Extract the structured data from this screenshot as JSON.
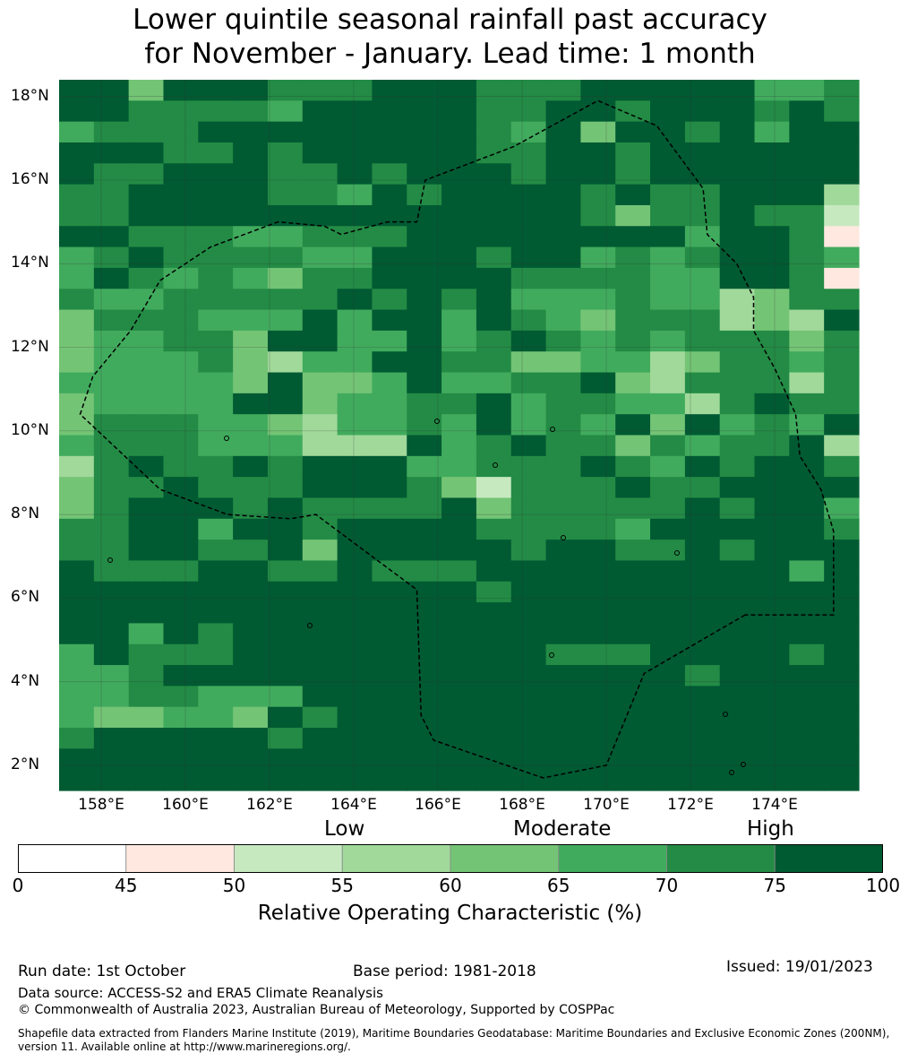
{
  "title": {
    "line1": "Lower quintile seasonal rainfall past accuracy",
    "line2": "for November - January. Lead time: 1 month"
  },
  "map": {
    "lat_labels": [
      "18°N",
      "16°N",
      "14°N",
      "12°N",
      "10°N",
      "8°N",
      "6°N",
      "4°N",
      "2°N"
    ],
    "lon_labels": [
      "158°E",
      "160°E",
      "162°E",
      "164°E",
      "166°E",
      "168°E",
      "170°E",
      "172°E",
      "174°E"
    ],
    "lon_range": [
      157,
      176
    ],
    "lat_range": [
      1.4,
      18.4
    ],
    "cell_size_deg": 0.833,
    "grid_cols": 23,
    "grid_rows": 34,
    "roc_class_grid": [
      "77477766677766677777556",
      "77666657777766776777676",
      "56667777777765747767577",
      "77766767777766776777777",
      "76677766767776776777777",
      "66777766576777767667773",
      "66777777777777764667662",
      "77666556667777777757761",
      "56766665577767756567765",
      "57656546677776666557761",
      "65566666767675556553466",
      "46665557577576546663437",
      "45566477557567656566646",
      "45556435577664455346656",
      "55555474457556674366636",
      "45555774556675665536766",
      "46665543556575657475657",
      "56665553337567664656673",
      "36766767775566676576776",
      "46676667776426667667777",
      "46777676666746666676775",
      "66775776777766665777776",
      "66776674777776776676777",
      "76667766766677777777757",
      "77777777777767777777777",
      "77777777777777777777777",
      "77576777777777777777777",
      "57666777777777666777767",
      "55677777777777777767777",
      "55665557777777777777777",
      "54455476777777777777777",
      "67777767777777777777777",
      "77777777777777777777777",
      "77777777777777777777777"
    ],
    "eez_outline": [
      [
        173.3,
        5.6
      ],
      [
        170.9,
        4.2
      ],
      [
        170,
        2
      ],
      [
        168.5,
        1.7
      ],
      [
        165.9,
        2.6
      ],
      [
        165.6,
        3.2
      ],
      [
        165.5,
        6.2
      ],
      [
        163.1,
        8.0
      ],
      [
        162.5,
        7.9
      ],
      [
        161,
        8
      ],
      [
        159.4,
        8.6
      ],
      [
        157.5,
        10.4
      ],
      [
        157.8,
        11.3
      ],
      [
        158.7,
        12.4
      ],
      [
        159.4,
        13.6
      ],
      [
        160.6,
        14.4
      ],
      [
        162.2,
        15
      ],
      [
        163.3,
        14.9
      ],
      [
        163.7,
        14.7
      ],
      [
        164.8,
        15.0
      ],
      [
        165.5,
        15.0
      ],
      [
        165.7,
        16
      ],
      [
        167.8,
        16.8
      ],
      [
        169.8,
        17.9
      ],
      [
        171.2,
        17.3
      ],
      [
        172.3,
        15.8
      ],
      [
        172.4,
        14.7
      ],
      [
        173.1,
        14.0
      ],
      [
        173.5,
        13.2
      ],
      [
        173.5,
        12.4
      ],
      [
        174,
        11.5
      ],
      [
        174.5,
        10.4
      ],
      [
        174.6,
        9.4
      ],
      [
        175.1,
        8.6
      ],
      [
        175.4,
        7.6
      ],
      [
        175.4,
        5.6
      ],
      [
        173.3,
        5.6
      ]
    ],
    "colors": {
      "class0": "#ffffff",
      "class1": "#fee8df",
      "class2": "#c7e9c0",
      "class3": "#a1d99b",
      "class4": "#74c476",
      "class5": "#41ab5d",
      "class6": "#238b45",
      "class7": "#005a32"
    }
  },
  "legend": {
    "categories": [
      "Low",
      "Moderate",
      "High"
    ],
    "ticks": [
      "0",
      "45",
      "50",
      "55",
      "60",
      "65",
      "70",
      "75",
      "100"
    ],
    "colors": [
      "#ffffff",
      "#fee8df",
      "#c7e9c0",
      "#a1d99b",
      "#74c476",
      "#41ab5d",
      "#238b45",
      "#005a32"
    ],
    "label": "Relative Operating Characteristic (%)"
  },
  "footer": {
    "run_date": "Run date: 1st October",
    "base_period": "Base period: 1981-2018",
    "issued": "Issued: 19/01/2023",
    "data_source": "Data source: ACCESS-S2 and ERA5 Climate Reanalysis",
    "copyright": "© Commonwealth of Australia 2023, Australian Bureau of Meteorology, Supported by COSPPac",
    "shapefile": "Shapefile data extracted from Flanders Marine Institute (2019), Maritime Boundaries Geodatabase: Maritime Boundaries and Exclusive Economic Zones (200NM), version 11. Available online at http://www.marineregions.org/."
  }
}
